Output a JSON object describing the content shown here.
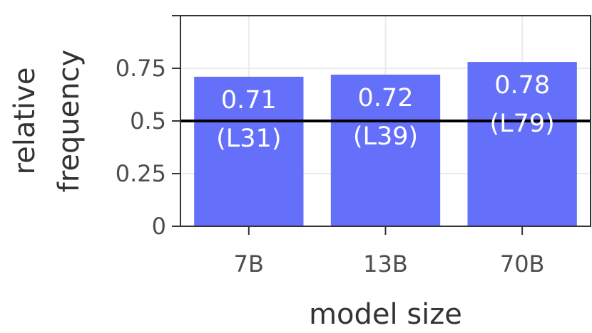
{
  "chart_data": {
    "type": "bar",
    "categories": [
      "7B",
      "13B",
      "70B"
    ],
    "values": [
      0.71,
      0.72,
      0.78
    ],
    "bar_labels": [
      {
        "value": "0.71",
        "layer": "(L31)"
      },
      {
        "value": "0.72",
        "layer": "(L39)"
      },
      {
        "value": "0.78",
        "layer": "(L79)"
      }
    ],
    "xlabel": "model size",
    "ylabel_lines": [
      "relative",
      "frequency"
    ],
    "yticks": [
      0,
      0.25,
      0.5,
      0.75
    ],
    "ytick_labels": [
      "0",
      "0.25",
      "0.5",
      "0.75"
    ],
    "ylim": [
      0,
      1
    ],
    "reference_line": 0.5,
    "grid": true,
    "bar_color": "#6470fa",
    "reference_line_color": "#000000"
  }
}
